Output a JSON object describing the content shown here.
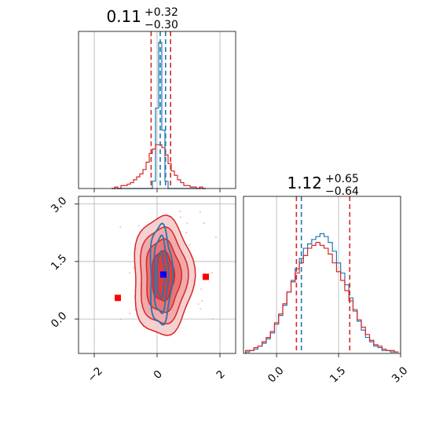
{
  "chart_data": [
    {
      "type": "histogram",
      "panel": "marginal-param-1",
      "title": {
        "value": "0.11",
        "plus": "+0.32",
        "minus": "−0.30"
      },
      "xlim": [
        -2.5,
        2.5
      ],
      "grid": true,
      "bins_x": [
        -1.4,
        -1.3,
        -1.2,
        -1.1,
        -1.0,
        -0.9,
        -0.8,
        -0.7,
        -0.6,
        -0.5,
        -0.4,
        -0.3,
        -0.2,
        -0.1,
        0.0,
        0.1,
        0.2,
        0.3,
        0.4,
        0.5,
        0.6,
        0.7,
        0.8,
        0.9,
        1.0,
        1.1,
        1.2,
        1.3,
        1.4,
        1.5
      ],
      "series": [
        {
          "color": "#1f77b4",
          "values": [
            0,
            0,
            0,
            0,
            0,
            0,
            0,
            0,
            0,
            0,
            0,
            0,
            0,
            0.05,
            0.55,
            1.0,
            0.4,
            0.05,
            0,
            0,
            0,
            0,
            0,
            0,
            0,
            0,
            0,
            0,
            0,
            0
          ]
        },
        {
          "color": "#d62728",
          "values": [
            0,
            0.01,
            0,
            0.02,
            0.02,
            0.03,
            0.04,
            0.06,
            0.08,
            0.1,
            0.13,
            0.18,
            0.24,
            0.27,
            0.3,
            0.3,
            0.28,
            0.23,
            0.17,
            0.12,
            0.09,
            0.06,
            0.04,
            0.02,
            0.02,
            0.01,
            0.01,
            0,
            0.01,
            0
          ]
        }
      ],
      "vlines": [
        {
          "x": -0.19,
          "color": "#d62728"
        },
        {
          "x": 0.43,
          "color": "#d62728"
        },
        {
          "x": 0.1,
          "color": "#1f77b4"
        },
        {
          "x": 0.27,
          "color": "#1f77b4"
        }
      ],
      "xticks": [
        -2,
        0,
        2
      ]
    },
    {
      "type": "histogram",
      "panel": "marginal-param-2",
      "title": {
        "value": "1.12",
        "plus": "+0.65",
        "minus": "−0.64"
      },
      "xlim": [
        -0.8,
        3.0
      ],
      "grid": true,
      "bins_x": [
        -0.7,
        -0.6,
        -0.5,
        -0.4,
        -0.3,
        -0.2,
        -0.1,
        0.0,
        0.1,
        0.2,
        0.3,
        0.4,
        0.5,
        0.6,
        0.7,
        0.8,
        0.9,
        1.0,
        1.1,
        1.2,
        1.3,
        1.4,
        1.5,
        1.6,
        1.7,
        1.8,
        1.9,
        2.0,
        2.1,
        2.2,
        2.3,
        2.4,
        2.5,
        2.6,
        2.7,
        2.8,
        2.9
      ],
      "series": [
        {
          "color": "#1f77b4",
          "values": [
            0.01,
            0.02,
            0.03,
            0.05,
            0.07,
            0.1,
            0.14,
            0.2,
            0.26,
            0.33,
            0.42,
            0.5,
            0.58,
            0.65,
            0.72,
            0.75,
            0.78,
            0.8,
            0.82,
            0.8,
            0.76,
            0.7,
            0.62,
            0.55,
            0.47,
            0.38,
            0.3,
            0.22,
            0.16,
            0.11,
            0.08,
            0.05,
            0.04,
            0.02,
            0.02,
            0.01,
            0.01
          ]
        },
        {
          "color": "#d62728",
          "values": [
            0.02,
            0.02,
            0.04,
            0.05,
            0.08,
            0.11,
            0.15,
            0.21,
            0.27,
            0.34,
            0.42,
            0.49,
            0.55,
            0.62,
            0.67,
            0.72,
            0.74,
            0.76,
            0.74,
            0.72,
            0.68,
            0.62,
            0.56,
            0.5,
            0.43,
            0.36,
            0.29,
            0.23,
            0.18,
            0.13,
            0.09,
            0.06,
            0.05,
            0.03,
            0.02,
            0.02,
            0.01
          ]
        }
      ],
      "vlines": [
        {
          "x": 0.48,
          "color": "#d62728"
        },
        {
          "x": 1.77,
          "color": "#d62728"
        },
        {
          "x": 0.6,
          "color": "#1f77b4"
        }
      ],
      "xticks": [
        "0.0",
        "1.5",
        "3.0"
      ]
    },
    {
      "type": "contour",
      "panel": "joint-param-1-param-2",
      "xlim": [
        -2.5,
        2.5
      ],
      "ylim": [
        -0.9,
        3.2
      ],
      "grid": true,
      "red_filled_levels": [
        {
          "cx": 0.18,
          "cy": 1.12,
          "sx": 0.95,
          "sy": 1.55
        },
        {
          "cx": 0.18,
          "cy": 1.12,
          "sx": 0.75,
          "sy": 1.25
        },
        {
          "cx": 0.18,
          "cy": 1.12,
          "sx": 0.55,
          "sy": 0.95
        },
        {
          "cx": 0.18,
          "cy": 1.12,
          "sx": 0.35,
          "sy": 0.65
        }
      ],
      "blue_line_levels": [
        {
          "cx": 0.12,
          "cy": 1.15,
          "sx": 0.35,
          "sy": 1.3
        },
        {
          "cx": 0.12,
          "cy": 1.15,
          "sx": 0.22,
          "sy": 1.0
        },
        {
          "cx": 0.12,
          "cy": 1.15,
          "sx": 0.12,
          "sy": 0.6
        }
      ],
      "markers": [
        {
          "x": 0.2,
          "y": 1.16,
          "color": "#0000ff"
        },
        {
          "x": -1.25,
          "y": 0.55,
          "color": "#ff0000"
        },
        {
          "x": 1.55,
          "y": 1.1,
          "color": "#ff0000"
        }
      ],
      "xticks": [
        "−2",
        "0",
        "2"
      ],
      "yticks": [
        "0.0",
        "1.5",
        "3.0"
      ]
    }
  ]
}
